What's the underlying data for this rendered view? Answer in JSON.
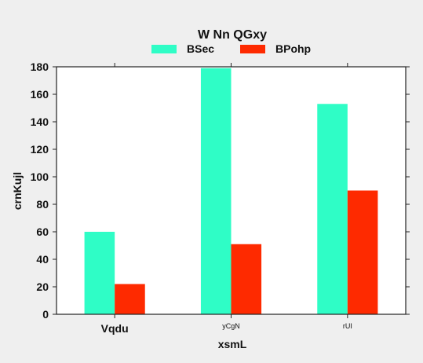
{
  "chart_data": {
    "type": "bar",
    "title": "W Nn  QGxy",
    "xlabel": "xsmL",
    "ylabel": "crnKujl",
    "categories": [
      "Vqdu",
      "yCgN",
      "rUI"
    ],
    "category_label_sizes": [
      "large",
      "small",
      "small"
    ],
    "series": [
      {
        "name": "BSec",
        "values": [
          60,
          179,
          153
        ],
        "color": "#2ffdc6"
      },
      {
        "name": "BPohp",
        "values": [
          22,
          51,
          90
        ],
        "color": "#fe2a00"
      }
    ],
    "ylim": [
      0,
      180
    ],
    "yticks": [
      0,
      20,
      40,
      60,
      80,
      100,
      120,
      140,
      160,
      180
    ],
    "legend": "top-center",
    "grid": false
  }
}
